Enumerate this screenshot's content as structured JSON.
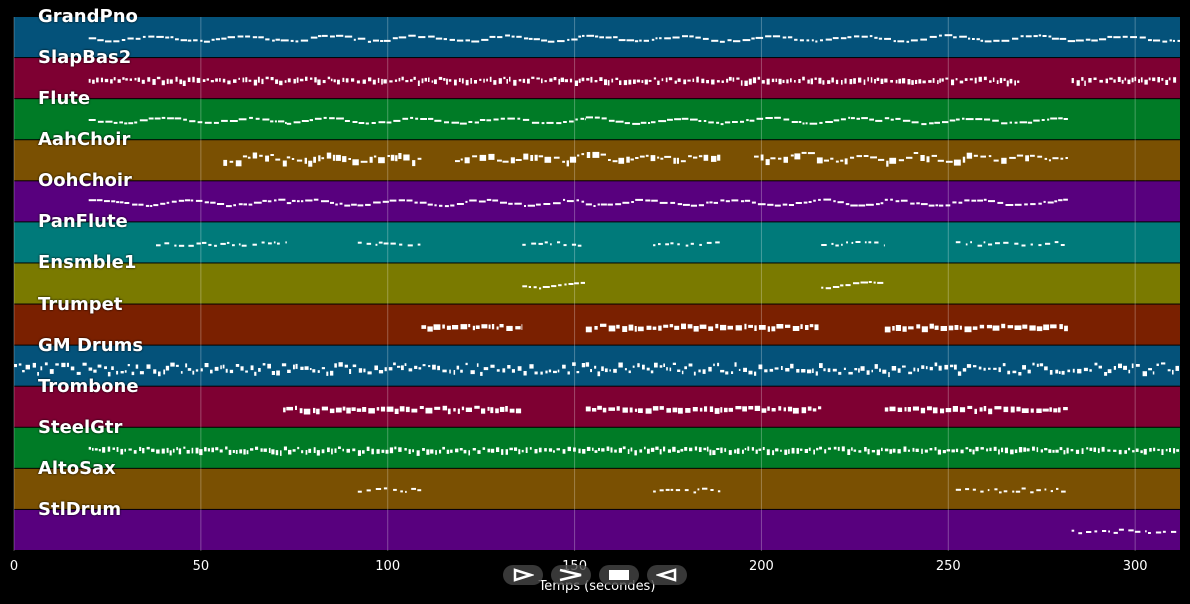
{
  "chart_data": {
    "type": "piano-roll",
    "xlabel": "Temps (secondes)",
    "xlim": [
      0,
      312
    ],
    "xticks": [
      0,
      50,
      100,
      150,
      200,
      250,
      300
    ],
    "xtick_labels": [
      "0",
      "50",
      "100",
      "150",
      "200",
      "250",
      "300"
    ],
    "tracks": [
      {
        "name": "GrandPno",
        "color": "#04527a",
        "segments": [
          [
            20,
            312
          ]
        ],
        "pattern": "melody"
      },
      {
        "name": "SlapBas2",
        "color": "#7e0032",
        "segments": [
          [
            20,
            269
          ],
          [
            283,
            311
          ]
        ],
        "pattern": "dense"
      },
      {
        "name": "Flute",
        "color": "#007b26",
        "segments": [
          [
            20,
            73
          ],
          [
            73,
            153
          ],
          [
            153,
            233
          ],
          [
            233,
            282
          ]
        ],
        "pattern": "melody"
      },
      {
        "name": "AahChoir",
        "color": "#7a5002",
        "segments": [
          [
            56,
            73
          ],
          [
            73,
            109
          ],
          [
            118,
            189
          ],
          [
            198,
            282
          ]
        ],
        "pattern": "chords"
      },
      {
        "name": "OohChoir",
        "color": "#58007e",
        "segments": [
          [
            20,
            73
          ],
          [
            73,
            153
          ],
          [
            153,
            233
          ],
          [
            233,
            282
          ]
        ],
        "pattern": "melody"
      },
      {
        "name": "PanFlute",
        "color": "#007a7a",
        "segments": [
          [
            38,
            73
          ],
          [
            92,
            109
          ],
          [
            136,
            153
          ],
          [
            171,
            189
          ],
          [
            216,
            233
          ],
          [
            252,
            282
          ]
        ],
        "pattern": "sparse"
      },
      {
        "name": "Ensmble1",
        "color": "#7a7a00",
        "segments": [
          [
            136,
            153
          ],
          [
            216,
            233
          ]
        ],
        "pattern": "melody"
      },
      {
        "name": "Trumpet",
        "color": "#7a2000",
        "segments": [
          [
            109,
            136
          ],
          [
            153,
            216
          ],
          [
            233,
            282
          ]
        ],
        "pattern": "notes"
      },
      {
        "name": "GM Drums",
        "color": "#04527a",
        "segments": [
          [
            0,
            312
          ]
        ],
        "pattern": "drums"
      },
      {
        "name": "Trombone",
        "color": "#7e0032",
        "segments": [
          [
            72,
            136
          ],
          [
            153,
            216
          ],
          [
            233,
            282
          ]
        ],
        "pattern": "notes"
      },
      {
        "name": "SteelGtr",
        "color": "#007b26",
        "segments": [
          [
            20,
            312
          ]
        ],
        "pattern": "dense"
      },
      {
        "name": "AltoSax",
        "color": "#7a5002",
        "segments": [
          [
            92,
            109
          ],
          [
            171,
            189
          ],
          [
            252,
            282
          ]
        ],
        "pattern": "sparse"
      },
      {
        "name": "StlDrum",
        "color": "#58007e",
        "segments": [
          [
            283,
            311
          ]
        ],
        "pattern": "sparse"
      }
    ]
  },
  "transport": {
    "buttons": [
      {
        "name": "play-icon",
        "label": "play"
      },
      {
        "name": "fast-forward-icon",
        "label": "fast-forward"
      },
      {
        "name": "stop-icon",
        "label": "stop"
      },
      {
        "name": "rewind-icon",
        "label": "rewind"
      }
    ]
  }
}
